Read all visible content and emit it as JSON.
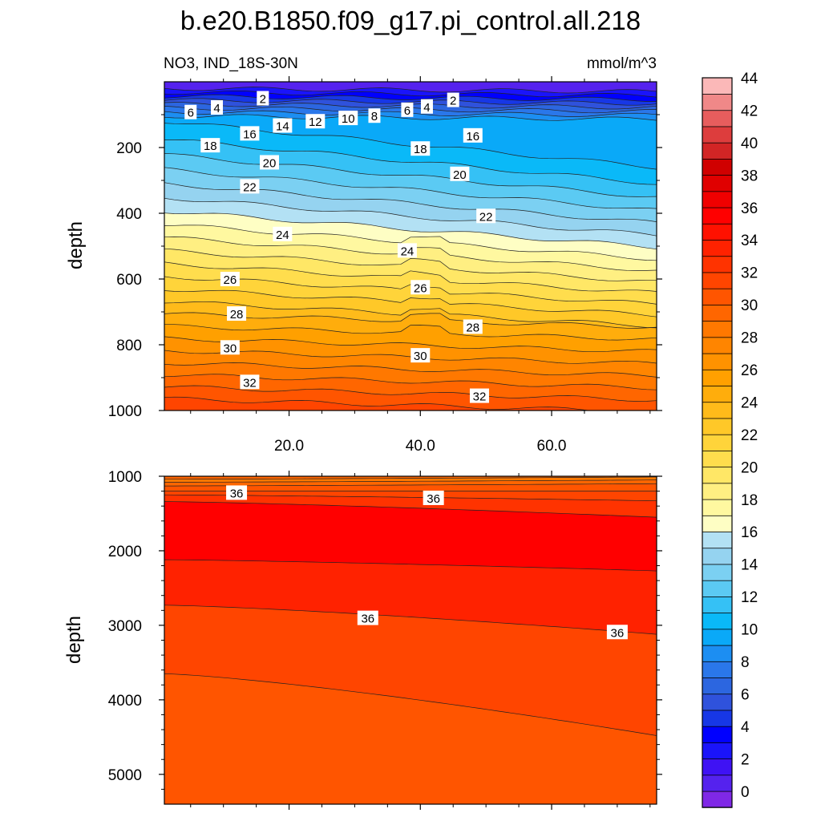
{
  "figure": {
    "title": "b.e20.B1850.f09_g17.pi_control.all.218",
    "subtitle_left": "NO3, IND_18S-30N",
    "units": "mmol/m^3"
  },
  "chart_data": [
    {
      "type": "heatmap",
      "panel": "upper",
      "ylabel": "depth",
      "xlabel": "",
      "xlim": [
        1,
        76
      ],
      "ylim": [
        1000,
        0
      ],
      "x_ticks": [
        20,
        40,
        60
      ],
      "x_tick_labels": [
        "20.0",
        "40.0",
        "60.0"
      ],
      "y_ticks": [
        200,
        400,
        600,
        800,
        1000
      ],
      "y_tick_labels": [
        "200",
        "400",
        "600",
        "800",
        "1000"
      ],
      "contour_labels": [
        {
          "text": "2",
          "x": 16,
          "depth": 50
        },
        {
          "text": "2",
          "x": 45,
          "depth": 55
        },
        {
          "text": "4",
          "x": 9,
          "depth": 78
        },
        {
          "text": "4",
          "x": 41,
          "depth": 75
        },
        {
          "text": "6",
          "x": 5,
          "depth": 92
        },
        {
          "text": "6",
          "x": 38,
          "depth": 85
        },
        {
          "text": "8",
          "x": 33,
          "depth": 103
        },
        {
          "text": "10",
          "x": 29,
          "depth": 110
        },
        {
          "text": "12",
          "x": 24,
          "depth": 120
        },
        {
          "text": "14",
          "x": 19,
          "depth": 133
        },
        {
          "text": "16",
          "x": 14,
          "depth": 157
        },
        {
          "text": "16",
          "x": 48,
          "depth": 163
        },
        {
          "text": "18",
          "x": 8,
          "depth": 193
        },
        {
          "text": "18",
          "x": 40,
          "depth": 203
        },
        {
          "text": "20",
          "x": 17,
          "depth": 245
        },
        {
          "text": "20",
          "x": 46,
          "depth": 280
        },
        {
          "text": "22",
          "x": 14,
          "depth": 318
        },
        {
          "text": "22",
          "x": 50,
          "depth": 408
        },
        {
          "text": "24",
          "x": 19,
          "depth": 463
        },
        {
          "text": "24",
          "x": 38,
          "depth": 513
        },
        {
          "text": "26",
          "x": 11,
          "depth": 600
        },
        {
          "text": "26",
          "x": 40,
          "depth": 625
        },
        {
          "text": "28",
          "x": 12,
          "depth": 705
        },
        {
          "text": "28",
          "x": 48,
          "depth": 745
        },
        {
          "text": "30",
          "x": 11,
          "depth": 808
        },
        {
          "text": "30",
          "x": 40,
          "depth": 832
        },
        {
          "text": "32",
          "x": 14,
          "depth": 913
        },
        {
          "text": "32",
          "x": 49,
          "depth": 955
        }
      ]
    },
    {
      "type": "heatmap",
      "panel": "lower",
      "ylabel": "depth",
      "xlabel": "",
      "xlim": [
        1,
        76
      ],
      "ylim": [
        5400,
        1000
      ],
      "y_ticks": [
        1000,
        2000,
        3000,
        4000,
        5000
      ],
      "y_tick_labels": [
        "1000",
        "2000",
        "3000",
        "4000",
        "5000"
      ],
      "contour_labels": [
        {
          "text": "36",
          "x": 12,
          "depth": 1220
        },
        {
          "text": "36",
          "x": 42,
          "depth": 1290
        },
        {
          "text": "36",
          "x": 32,
          "depth": 2900
        },
        {
          "text": "36",
          "x": 70,
          "depth": 3090
        }
      ]
    }
  ],
  "colorbar": {
    "levels": [
      "0",
      "2",
      "4",
      "6",
      "8",
      "10",
      "12",
      "14",
      "16",
      "18",
      "20",
      "22",
      "24",
      "26",
      "28",
      "30",
      "32",
      "34",
      "36",
      "38",
      "40",
      "42",
      "44"
    ],
    "colors": [
      "#7f28e6",
      "#5522ee",
      "#3f12f4",
      "#1a14fa",
      "#0000ff",
      "#1737e6",
      "#2f52dc",
      "#2c66e0",
      "#2a77ea",
      "#1c8ef2",
      "#0aa9f8",
      "#0ab9f8",
      "#35c1f5",
      "#5bcaf3",
      "#7bd0f2",
      "#95d3f0",
      "#b3e1f4",
      "#fefec4",
      "#fff8a0",
      "#ffef82",
      "#ffe766",
      "#ffdd4d",
      "#ffd43a",
      "#ffc828",
      "#ffbb1a",
      "#ffad0c",
      "#ffa000",
      "#ff9200",
      "#ff8500",
      "#ff7800",
      "#ff6600",
      "#ff5500",
      "#ff4500",
      "#ff3300",
      "#ff2200",
      "#ff1100",
      "#ff0000",
      "#f00000",
      "#e00000",
      "#d00000",
      "#d22525",
      "#dd3d3d",
      "#e75d5d",
      "#f08888",
      "#fbb8b8"
    ]
  }
}
